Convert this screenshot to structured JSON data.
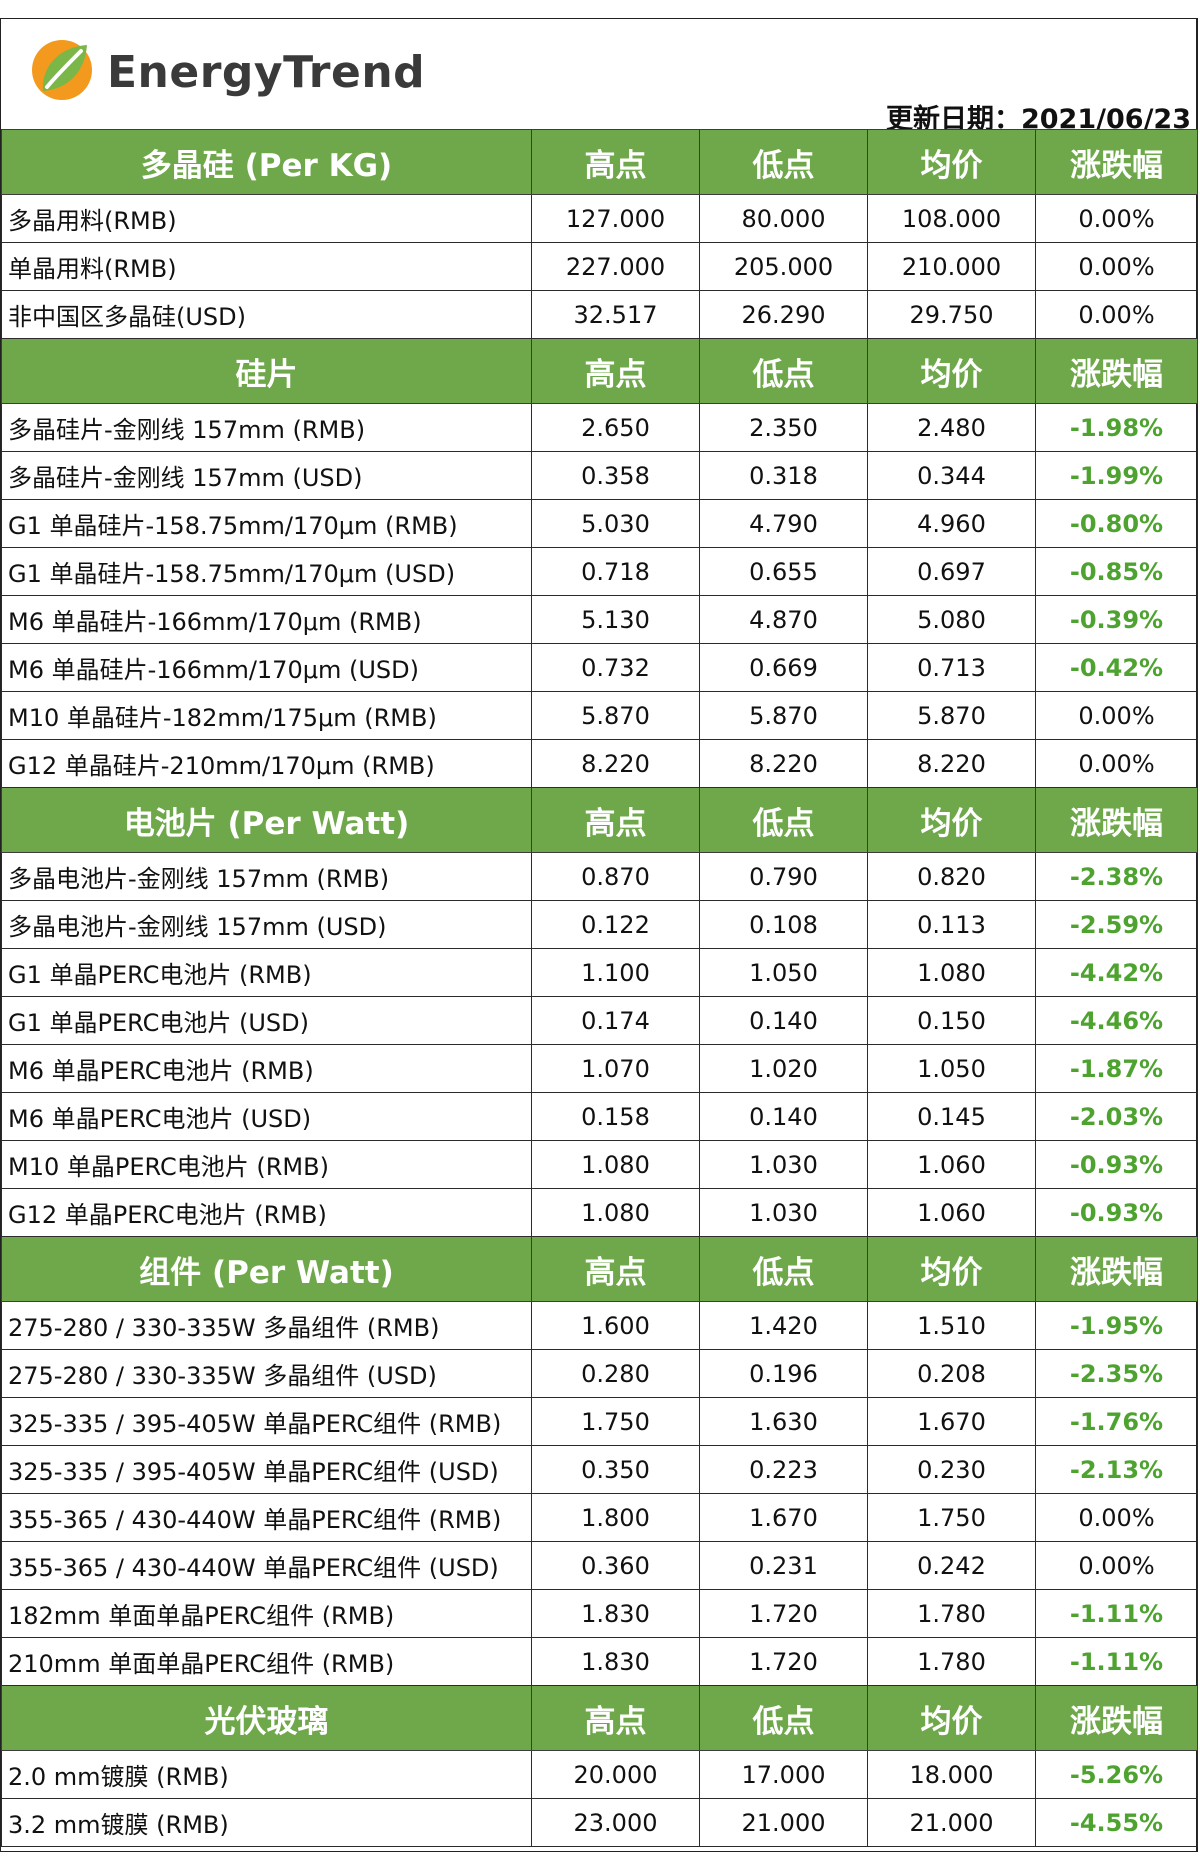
{
  "brand": {
    "name": "EnergyTrend",
    "logo_icon": "energytrend-leaf-logo"
  },
  "update_date": "更新日期：2021/06/23",
  "colors": {
    "header_green": "#6fa84a",
    "negative_change": "#4ea330",
    "logo_orange": "#f39a1e",
    "logo_green": "#7ab648"
  },
  "sections": [
    {
      "title": "多晶硅 (Per KG)",
      "columns": [
        "高点",
        "低点",
        "均价",
        "涨跌幅"
      ],
      "rows": [
        {
          "name": "多晶用料(RMB)",
          "high": "127.000",
          "low": "80.000",
          "avg": "108.000",
          "change": "0.00%"
        },
        {
          "name": "单晶用料(RMB)",
          "high": "227.000",
          "low": "205.000",
          "avg": "210.000",
          "change": "0.00%"
        },
        {
          "name": "非中国区多晶硅(USD)",
          "high": "32.517",
          "low": "26.290",
          "avg": "29.750",
          "change": "0.00%"
        }
      ]
    },
    {
      "title": "硅片",
      "columns": [
        "高点",
        "低点",
        "均价",
        "涨跌幅"
      ],
      "rows": [
        {
          "name": "多晶硅片-金刚线 157mm (RMB)",
          "high": "2.650",
          "low": "2.350",
          "avg": "2.480",
          "change": "-1.98%"
        },
        {
          "name": "多晶硅片-金刚线 157mm (USD)",
          "high": "0.358",
          "low": "0.318",
          "avg": "0.344",
          "change": "-1.99%"
        },
        {
          "name": "G1 单晶硅片-158.75mm/170μm (RMB)",
          "high": "5.030",
          "low": "4.790",
          "avg": "4.960",
          "change": "-0.80%"
        },
        {
          "name": "G1 单晶硅片-158.75mm/170μm (USD)",
          "high": "0.718",
          "low": "0.655",
          "avg": "0.697",
          "change": "-0.85%"
        },
        {
          "name": "M6 单晶硅片-166mm/170μm (RMB)",
          "high": "5.130",
          "low": "4.870",
          "avg": "5.080",
          "change": "-0.39%"
        },
        {
          "name": "M6 单晶硅片-166mm/170μm (USD)",
          "high": "0.732",
          "low": "0.669",
          "avg": "0.713",
          "change": "-0.42%"
        },
        {
          "name": "M10 单晶硅片-182mm/175μm (RMB)",
          "high": "5.870",
          "low": "5.870",
          "avg": "5.870",
          "change": "0.00%"
        },
        {
          "name": "G12 单晶硅片-210mm/170μm  (RMB)",
          "high": "8.220",
          "low": "8.220",
          "avg": "8.220",
          "change": "0.00%"
        }
      ]
    },
    {
      "title": "电池片 (Per Watt)",
      "columns": [
        "高点",
        "低点",
        "均价",
        "涨跌幅"
      ],
      "rows": [
        {
          "name": "多晶电池片-金刚线 157mm (RMB)",
          "high": "0.870",
          "low": "0.790",
          "avg": "0.820",
          "change": "-2.38%"
        },
        {
          "name": "多晶电池片-金刚线 157mm (USD)",
          "high": "0.122",
          "low": "0.108",
          "avg": "0.113",
          "change": "-2.59%"
        },
        {
          "name": "G1 单晶PERC电池片 (RMB)",
          "high": "1.100",
          "low": "1.050",
          "avg": "1.080",
          "change": "-4.42%"
        },
        {
          "name": "G1 单晶PERC电池片  (USD)",
          "high": "0.174",
          "low": "0.140",
          "avg": "0.150",
          "change": "-4.46%"
        },
        {
          "name": "M6 单晶PERC电池片 (RMB)",
          "high": "1.070",
          "low": "1.020",
          "avg": "1.050",
          "change": "-1.87%"
        },
        {
          "name": "M6 单晶PERC电池片 (USD)",
          "high": "0.158",
          "low": "0.140",
          "avg": "0.145",
          "change": "-2.03%"
        },
        {
          "name": "M10 单晶PERC电池片 (RMB)",
          "high": "1.080",
          "low": "1.030",
          "avg": "1.060",
          "change": "-0.93%"
        },
        {
          "name": "G12 单晶PERC电池片 (RMB)",
          "high": "1.080",
          "low": "1.030",
          "avg": "1.060",
          "change": "-0.93%"
        }
      ]
    },
    {
      "title": "组件 (Per Watt)",
      "columns": [
        "高点",
        "低点",
        "均价",
        "涨跌幅"
      ],
      "rows": [
        {
          "name": "275-280 / 330-335W 多晶组件 (RMB)",
          "high": "1.600",
          "low": "1.420",
          "avg": "1.510",
          "change": "-1.95%"
        },
        {
          "name": "275-280 / 330-335W 多晶组件 (USD)",
          "high": "0.280",
          "low": "0.196",
          "avg": "0.208",
          "change": "-2.35%"
        },
        {
          "name": "325-335 / 395-405W 单晶PERC组件 (RMB)",
          "high": "1.750",
          "low": "1.630",
          "avg": "1.670",
          "change": "-1.76%"
        },
        {
          "name": "325-335 / 395-405W 单晶PERC组件 (USD)",
          "high": "0.350",
          "low": "0.223",
          "avg": "0.230",
          "change": "-2.13%"
        },
        {
          "name": "355-365 / 430-440W 单晶PERC组件 (RMB)",
          "high": "1.800",
          "low": "1.670",
          "avg": "1.750",
          "change": "0.00%"
        },
        {
          "name": "355-365 / 430-440W 单晶PERC组件 (USD)",
          "high": "0.360",
          "low": "0.231",
          "avg": "0.242",
          "change": "0.00%"
        },
        {
          "name": "182mm 单面单晶PERC组件 (RMB)",
          "high": "1.830",
          "low": "1.720",
          "avg": "1.780",
          "change": "-1.11%"
        },
        {
          "name": "210mm 单面单晶PERC组件 (RMB)",
          "high": "1.830",
          "low": "1.720",
          "avg": "1.780",
          "change": "-1.11%"
        }
      ]
    },
    {
      "title": "光伏玻璃",
      "columns": [
        "高点",
        "低点",
        "均价",
        "涨跌幅"
      ],
      "rows": [
        {
          "name": "2.0 mm镀膜 (RMB)",
          "high": "20.000",
          "low": "17.000",
          "avg": "18.000",
          "change": "-5.26%"
        },
        {
          "name": "3.2 mm镀膜 (RMB)",
          "high": "23.000",
          "low": "21.000",
          "avg": "21.000",
          "change": "-4.55%"
        }
      ]
    }
  ]
}
